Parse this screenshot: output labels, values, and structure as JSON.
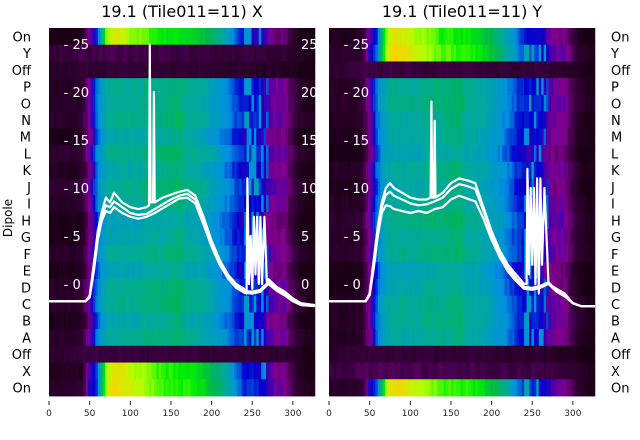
{
  "chart_data": {
    "type": "heatmap",
    "ylabel": "Dipole",
    "row_labels": [
      "On",
      "Y",
      "Off",
      "P",
      "O",
      "N",
      "M",
      "L",
      "K",
      "J",
      "I",
      "H",
      "G",
      "F",
      "E",
      "D",
      "C",
      "B",
      "A",
      "Off",
      "X",
      "On"
    ],
    "x_ticks": [
      0,
      50,
      100,
      150,
      200,
      250,
      300
    ],
    "x_range": [
      0,
      327
    ],
    "line_y_ticks": [
      0,
      5,
      10,
      15,
      20,
      25
    ],
    "line_y_range": [
      -2.5,
      26.5
    ],
    "colormap": {
      "stops": [
        0,
        0.1,
        0.2,
        0.3,
        0.4,
        0.5,
        0.6,
        0.7,
        0.8,
        0.9,
        1
      ],
      "colors": [
        "#1a0014",
        "#3a0040",
        "#820090",
        "#0000d0",
        "#0090e0",
        "#00a8a0",
        "#00b848",
        "#00f000",
        "#b0ff00",
        "#ffd000",
        "#ff8800"
      ]
    },
    "profile_step": 10,
    "profiles": {
      "dipole": [
        0.03,
        0.03,
        0.03,
        0.03,
        0.05,
        0.2,
        0.38,
        0.48,
        0.5,
        0.5,
        0.5,
        0.5,
        0.52,
        0.52,
        0.52,
        0.53,
        0.55,
        0.5,
        0.5,
        0.48,
        0.45,
        0.42,
        0.38,
        0.33,
        0.3,
        0.3,
        0.3,
        0.22,
        0.2,
        0.2,
        0.1,
        0.03,
        0.0
      ],
      "on": [
        0.03,
        0.03,
        0.03,
        0.03,
        0.05,
        0.25,
        0.35,
        0.78,
        0.87,
        0.86,
        0.82,
        0.8,
        0.78,
        0.75,
        0.72,
        0.72,
        0.7,
        0.7,
        0.68,
        0.64,
        0.6,
        0.55,
        0.48,
        0.4,
        0.32,
        0.32,
        0.3,
        0.25,
        0.2,
        0.2,
        0.1,
        0.03,
        0.0
      ],
      "off": [
        0.07,
        0.07,
        0.08,
        0.09,
        0.1,
        0.1,
        0.1,
        0.1,
        0.1,
        0.1,
        0.1,
        0.1,
        0.09,
        0.09,
        0.09,
        0.09,
        0.09,
        0.09,
        0.09,
        0.09,
        0.08,
        0.08,
        0.08,
        0.08,
        0.08,
        0.08,
        0.08,
        0.07,
        0.07,
        0.06,
        0.05,
        0.03,
        0.0
      ]
    },
    "panels": [
      {
        "title": "19.1 (Tile011=11) X",
        "row_types": [
          "on",
          "off",
          "off",
          "dipole",
          "dipole",
          "dipole",
          "dipole",
          "dipole",
          "dipole",
          "dipole",
          "dipole",
          "dipole",
          "dipole",
          "dipole",
          "dipole",
          "dipole",
          "dipole",
          "dipole",
          "dipole",
          "off",
          "on",
          "on"
        ],
        "series": [
          {
            "name": "trace-1",
            "x": [
              0,
              45,
              50,
              55,
              60,
              65,
              70,
              75,
              80,
              90,
              100,
              110,
              120,
              123,
              124,
              125,
              128,
              129,
              130,
              140,
              150,
              160,
              170,
              180,
              190,
              200,
              210,
              220,
              230,
              240,
              243,
              244,
              246,
              248,
              250,
              252,
              254,
              256,
              258,
              260,
              262,
              265,
              268,
              270,
              280,
              290,
              300,
              310,
              327
            ],
            "y": [
              -1.8,
              -1.8,
              -1.2,
              2,
              5.5,
              7.5,
              9,
              8.5,
              9.5,
              8.5,
              8,
              7.8,
              8,
              8.2,
              25,
              8.5,
              8.5,
              20,
              8.5,
              9,
              9.3,
              9.6,
              9.8,
              9.2,
              7,
              4.5,
              2.5,
              1,
              0,
              -0.5,
              -1,
              11,
              0,
              5,
              -0.5,
              7,
              1,
              7,
              0,
              7,
              0,
              7,
              0,
              0.5,
              -0.3,
              -0.8,
              -1.5,
              -2,
              -2.2
            ]
          },
          {
            "name": "trace-2",
            "x": [
              0,
              45,
              50,
              55,
              60,
              65,
              70,
              75,
              80,
              90,
              100,
              110,
              120,
              130,
              140,
              150,
              160,
              170,
              180,
              190,
              200,
              210,
              220,
              230,
              240,
              250,
              260,
              270,
              280,
              290,
              300,
              310,
              327
            ],
            "y": [
              -1.8,
              -1.8,
              -1.3,
              1.5,
              5,
              7,
              8.2,
              8,
              8.6,
              8,
              7.4,
              7.2,
              7.3,
              7.8,
              8.3,
              8.8,
              9.2,
              9.4,
              8.8,
              6.6,
              4.2,
              2.2,
              0.8,
              -0.2,
              -0.7,
              -0.8,
              -0.6,
              0.2,
              -0.5,
              -1,
              -1.7,
              -2.1,
              -2.2
            ]
          },
          {
            "name": "trace-3",
            "x": [
              0,
              45,
              50,
              55,
              60,
              65,
              70,
              75,
              80,
              90,
              100,
              110,
              120,
              130,
              140,
              150,
              160,
              170,
              180,
              190,
              200,
              210,
              220,
              230,
              240,
              250,
              260,
              270,
              280,
              290,
              300,
              310,
              327
            ],
            "y": [
              -1.8,
              -1.8,
              -1.4,
              1.2,
              4.6,
              6.6,
              7.6,
              7.4,
              8,
              7.4,
              7,
              6.8,
              7,
              7.4,
              7.9,
              8.4,
              8.9,
              9,
              8.4,
              6.2,
              3.9,
              2,
              0.6,
              -0.4,
              -0.9,
              -1,
              -0.8,
              0,
              -0.7,
              -1.2,
              -1.8,
              -2.2,
              -2.3
            ]
          }
        ]
      },
      {
        "title": "19.1 (Tile011=11) Y",
        "row_types": [
          "on",
          "on",
          "off",
          "dipole",
          "dipole",
          "dipole",
          "dipole",
          "dipole",
          "dipole",
          "dipole",
          "dipole",
          "dipole",
          "dipole",
          "dipole",
          "dipole",
          "dipole",
          "dipole",
          "dipole",
          "dipole",
          "off",
          "off",
          "on"
        ],
        "series": [
          {
            "name": "trace-1",
            "x": [
              0,
              45,
              50,
              55,
              60,
              65,
              70,
              75,
              80,
              90,
              100,
              110,
              120,
              125,
              126,
              127,
              129,
              130,
              131,
              140,
              150,
              160,
              170,
              180,
              190,
              200,
              210,
              220,
              230,
              240,
              243,
              244,
              246,
              248,
              250,
              252,
              254,
              256,
              258,
              260,
              262,
              265,
              268,
              270,
              280,
              290,
              300,
              310,
              327
            ],
            "y": [
              -1.8,
              -1.8,
              -1,
              2.5,
              6,
              8.5,
              10,
              10.5,
              10,
              9.5,
              9,
              8.8,
              8.8,
              9,
              19,
              9,
              9,
              17,
              9,
              9.5,
              10.5,
              11,
              10.8,
              10.5,
              8,
              5.5,
              3.5,
              2,
              1,
              0,
              0,
              12,
              1,
              10,
              2,
              10,
              0,
              11,
              -1,
              11,
              2,
              10,
              4,
              0,
              -0.5,
              -1,
              -2,
              -2.3,
              -2.3
            ]
          },
          {
            "name": "trace-2",
            "x": [
              0,
              45,
              50,
              55,
              60,
              65,
              70,
              75,
              80,
              90,
              100,
              110,
              120,
              130,
              140,
              150,
              160,
              170,
              180,
              190,
              200,
              210,
              220,
              230,
              240,
              250,
              260,
              270,
              280,
              290,
              300,
              310,
              327
            ],
            "y": [
              -1.8,
              -1.8,
              -1.1,
              2,
              5.5,
              8,
              9.3,
              9.6,
              9.2,
              8.8,
              8.4,
              8.2,
              8.3,
              8.6,
              9,
              9.9,
              10.4,
              10.2,
              9.9,
              7.6,
              5.2,
              3.2,
              1.7,
              0.6,
              -0.3,
              -0.4,
              -0.2,
              0.2,
              -0.7,
              -1.2,
              -2,
              -2.3,
              -2.3
            ]
          },
          {
            "name": "trace-3",
            "x": [
              0,
              45,
              50,
              55,
              60,
              65,
              70,
              75,
              80,
              90,
              100,
              110,
              120,
              130,
              140,
              150,
              160,
              170,
              180,
              190,
              200,
              210,
              220,
              230,
              240,
              250,
              260,
              270,
              280,
              290,
              300,
              310,
              327
            ],
            "y": [
              -1.8,
              -1.8,
              -1.2,
              1.6,
              5,
              7.4,
              8.2,
              8.1,
              7.8,
              7.6,
              7.4,
              7.6,
              7.4,
              7.8,
              8,
              8.8,
              9.2,
              8.9,
              8.6,
              6.8,
              4.6,
              2.8,
              1.3,
              0.3,
              -0.5,
              -0.6,
              -0.4,
              0,
              -0.8,
              -1.3,
              -2,
              -2.3,
              -2.3
            ]
          }
        ]
      }
    ]
  }
}
